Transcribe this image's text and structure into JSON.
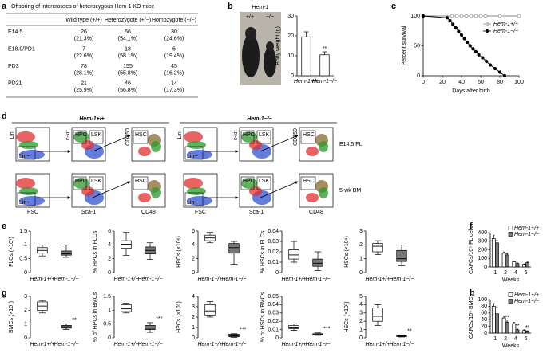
{
  "panel_a": {
    "letter": "a",
    "title": "Offspring of intercrosses of heterozygous Hem-1 KO mice",
    "columns": [
      "Wild type (+/+)",
      "Heterozygote (+/−)",
      "Homozygote (−/−)"
    ],
    "rows": [
      {
        "label": "E14.5",
        "cells": [
          [
            "26",
            "(21.3%)"
          ],
          [
            "66",
            "(54.1%)"
          ],
          [
            "30",
            "(24.6%)"
          ]
        ]
      },
      {
        "label": "E18.9/PD1",
        "cells": [
          [
            "7",
            "(22.6%)"
          ],
          [
            "18",
            "(58.1%)"
          ],
          [
            "6",
            "(19.4%)"
          ]
        ]
      },
      {
        "label": "PD3",
        "cells": [
          [
            "78",
            "(28.1%)"
          ],
          [
            "155",
            "(55.8%)"
          ],
          [
            "45",
            "(16.2%)"
          ]
        ]
      },
      {
        "label": "PD21",
        "cells": [
          [
            "21",
            "(25.9%)"
          ],
          [
            "46",
            "(56.8%)"
          ],
          [
            "14",
            "(17.3%)"
          ]
        ]
      }
    ]
  },
  "panel_b_photo": {
    "letter": "b",
    "title": "Hem-1",
    "genotypes": [
      "+/+",
      "−/−"
    ]
  },
  "panel_d": {
    "letter": "d",
    "groups": [
      "Hem-1+/+",
      "Hem-1−/−"
    ],
    "rows": [
      "E14.5 FL",
      "5-wk BM"
    ],
    "gates": [
      "Lin",
      "Lin−",
      "HPC",
      "LSK",
      "c-kit",
      "HSC",
      "CD150"
    ],
    "x_axes": [
      "FSC",
      "Sca-1",
      "CD48"
    ]
  },
  "chart_data": [
    {
      "type": "bar",
      "ylabel": "Body weight (g)",
      "categories": [
        "Hem-1+/+",
        "Hem-1−/−"
      ],
      "values": [
        19.5,
        10.5
      ],
      "errors": [
        2.5,
        1.5
      ],
      "colors": [
        "#ffffff",
        "#ffffff"
      ],
      "annotations": [
        null,
        "**"
      ],
      "ylim": [
        0,
        30
      ],
      "yticks": [
        0,
        10,
        20,
        30
      ]
    },
    {
      "type": "line",
      "panel": "c",
      "ylabel": "Percent survival",
      "xlabel": "Days after birth",
      "xlim": [
        0,
        100
      ],
      "xticks": [
        0,
        20,
        40,
        60,
        80,
        100
      ],
      "ylim": [
        0,
        100
      ],
      "yticks": [
        0,
        50,
        100
      ],
      "series": [
        {
          "name": "Hem-1+/+",
          "color": "#888888",
          "marker": "open",
          "x": [
            0,
            30,
            35,
            40,
            45,
            50,
            55,
            60,
            65,
            80,
            100
          ],
          "values": [
            100,
            100,
            100,
            100,
            100,
            100,
            100,
            100,
            100,
            100,
            100
          ]
        },
        {
          "name": "Hem-1−/−",
          "color": "#000000",
          "marker": "filled",
          "x": [
            0,
            25,
            28,
            31,
            34,
            37,
            40,
            43,
            46,
            49,
            52,
            55,
            58,
            62,
            66,
            70,
            75,
            80,
            85
          ],
          "values": [
            100,
            97,
            92,
            86,
            80,
            74,
            68,
            62,
            56,
            50,
            45,
            40,
            35,
            30,
            24,
            18,
            12,
            6,
            0
          ]
        }
      ]
    },
    {
      "type": "box",
      "panel": "e",
      "ylabel": "FLCs (×10⁷)",
      "categories": [
        "Hem-1+/+",
        "Hem-1−/−"
      ],
      "colors": [
        "#ffffff",
        "#777777"
      ],
      "boxes": [
        {
          "low": 0.6,
          "q1": 0.7,
          "median": 0.8,
          "q3": 0.9,
          "high": 1.0
        },
        {
          "low": 0.55,
          "q1": 0.63,
          "median": 0.68,
          "q3": 0.78,
          "high": 1.0
        }
      ],
      "ylim": [
        0,
        1.5
      ],
      "yticks": [
        0,
        0.5,
        1,
        1.5
      ]
    },
    {
      "type": "box",
      "ylabel": "% HPCs in FLCs",
      "categories": [
        "Hem-1+/+",
        "Hem-1−/−"
      ],
      "colors": [
        "#ffffff",
        "#777777"
      ],
      "boxes": [
        {
          "low": 2.5,
          "q1": 3.5,
          "median": 4.1,
          "q3": 4.6,
          "high": 5.8
        },
        {
          "low": 1.9,
          "q1": 2.7,
          "median": 3.2,
          "q3": 3.7,
          "high": 4.3
        }
      ],
      "ylim": [
        0,
        6
      ],
      "yticks": [
        0,
        2,
        4,
        6
      ]
    },
    {
      "type": "box",
      "ylabel": "HPCs (×10⁶)",
      "categories": [
        "Hem-1+/+",
        "Hem-1−/−"
      ],
      "colors": [
        "#ffffff",
        "#777777"
      ],
      "boxes": [
        {
          "low": 4.3,
          "q1": 4.6,
          "median": 5.0,
          "q3": 5.4,
          "high": 5.8
        },
        {
          "low": 1.2,
          "q1": 2.8,
          "median": 3.6,
          "q3": 4.2,
          "high": 4.5
        }
      ],
      "ylim": [
        0,
        6
      ],
      "yticks": [
        0,
        2,
        4,
        6
      ]
    },
    {
      "type": "box",
      "ylabel": "% HSCs in FLCs",
      "categories": [
        "Hem-1+/+",
        "Hem-1−/−"
      ],
      "colors": [
        "#ffffff",
        "#777777"
      ],
      "boxes": [
        {
          "low": 0.01,
          "q1": 0.013,
          "median": 0.017,
          "q3": 0.022,
          "high": 0.03
        },
        {
          "low": 0.002,
          "q1": 0.006,
          "median": 0.009,
          "q3": 0.013,
          "high": 0.02
        }
      ],
      "ylim": [
        0,
        0.04
      ],
      "yticks": [
        0,
        0.01,
        0.02,
        0.03,
        0.04
      ]
    },
    {
      "type": "box",
      "ylabel": "HSCs (×10⁴)",
      "categories": [
        "Hem-1+/+",
        "Hem-1−/−"
      ],
      "colors": [
        "#ffffff",
        "#777777"
      ],
      "boxes": [
        {
          "low": 1.3,
          "q1": 1.5,
          "median": 1.9,
          "q3": 2.1,
          "high": 2.3
        },
        {
          "low": 0.5,
          "q1": 0.8,
          "median": 1.0,
          "q3": 1.6,
          "high": 2.0
        }
      ],
      "ylim": [
        0,
        3
      ],
      "yticks": [
        0,
        1,
        2,
        3
      ]
    },
    {
      "type": "bar",
      "panel": "f",
      "ylabel": "CAFCs/10⁵ FL cells",
      "xlabel": "Weeks",
      "categories": [
        "1",
        "2",
        "4",
        "6"
      ],
      "series": [
        {
          "name": "Hem-1+/+",
          "color": "#ffffff",
          "values": [
            330,
            160,
            60,
            30
          ],
          "errors": [
            40,
            15,
            10,
            5
          ]
        },
        {
          "name": "Hem-1−/−",
          "color": "#777777",
          "values": [
            280,
            140,
            40,
            50
          ],
          "errors": [
            30,
            15,
            8,
            8
          ]
        }
      ],
      "ylim": [
        0,
        400
      ],
      "yticks": [
        0,
        100,
        200,
        300,
        400
      ]
    },
    {
      "type": "box",
      "panel": "g",
      "ylabel": "BMCs (×10⁷)",
      "categories": [
        "Hem-1+/+",
        "Hem-1−/−"
      ],
      "colors": [
        "#ffffff",
        "#777777"
      ],
      "annotations": [
        null,
        "**"
      ],
      "boxes": [
        {
          "low": 1.8,
          "q1": 2.0,
          "median": 2.3,
          "q3": 2.6,
          "high": 2.7
        },
        {
          "low": 0.6,
          "q1": 0.7,
          "median": 0.8,
          "q3": 0.9,
          "high": 1.0
        }
      ],
      "ylim": [
        0,
        3
      ],
      "yticks": [
        0,
        1,
        2,
        3
      ]
    },
    {
      "type": "box",
      "ylabel": "% of HPCs in BMCs",
      "categories": [
        "Hem-1+/+",
        "Hem-1−/−"
      ],
      "colors": [
        "#ffffff",
        "#777777"
      ],
      "annotations": [
        null,
        "***"
      ],
      "boxes": [
        {
          "low": 0.9,
          "q1": 0.95,
          "median": 1.05,
          "q3": 1.2,
          "high": 1.25
        },
        {
          "low": 0.2,
          "q1": 0.3,
          "median": 0.35,
          "q3": 0.45,
          "high": 0.55
        }
      ],
      "ylim": [
        0,
        1.5
      ],
      "yticks": [
        0,
        0.5,
        1,
        1.5
      ]
    },
    {
      "type": "box",
      "ylabel": "HPCs (×10⁵)",
      "categories": [
        "Hem-1+/+",
        "Hem-1−/−"
      ],
      "colors": [
        "#ffffff",
        "#777777"
      ],
      "annotations": [
        null,
        "***"
      ],
      "boxes": [
        {
          "low": 2.0,
          "q1": 2.2,
          "median": 2.6,
          "q3": 3.2,
          "high": 3.5
        },
        {
          "low": 0.05,
          "q1": 0.1,
          "median": 0.2,
          "q3": 0.35,
          "high": 0.4
        }
      ],
      "ylim": [
        0,
        4
      ],
      "yticks": [
        0,
        1,
        2,
        3,
        4
      ]
    },
    {
      "type": "box",
      "ylabel": "% of HSCs in BMCs",
      "categories": [
        "Hem-1+/+",
        "Hem-1−/−"
      ],
      "colors": [
        "#ffffff",
        "#777777"
      ],
      "annotations": [
        null,
        "***"
      ],
      "boxes": [
        {
          "low": 0.009,
          "q1": 0.011,
          "median": 0.013,
          "q3": 0.015,
          "high": 0.017
        },
        {
          "low": 0.003,
          "q1": 0.0035,
          "median": 0.004,
          "q3": 0.005,
          "high": 0.006
        }
      ],
      "ylim": [
        0,
        0.05
      ],
      "yticks": [
        0,
        0.01,
        0.02,
        0.03,
        0.04,
        0.05
      ]
    },
    {
      "type": "box",
      "ylabel": "HSCs (×10³)",
      "categories": [
        "Hem-1+/+",
        "Hem-1−/−"
      ],
      "colors": [
        "#ffffff",
        "#777777"
      ],
      "annotations": [
        null,
        "**"
      ],
      "boxes": [
        {
          "low": 1.5,
          "q1": 2.0,
          "median": 2.6,
          "q3": 3.6,
          "high": 4.0
        },
        {
          "low": 0.1,
          "q1": 0.15,
          "median": 0.2,
          "q3": 0.25,
          "high": 0.3
        }
      ],
      "ylim": [
        0,
        5
      ],
      "yticks": [
        0,
        1,
        2,
        3,
        4,
        5
      ]
    },
    {
      "type": "bar",
      "panel": "h",
      "ylabel": "CAFCs/10⁵ BMCs",
      "xlabel": "Weeks",
      "categories": [
        "1",
        "2",
        "4",
        "6"
      ],
      "series": [
        {
          "name": "Hem-1+/+",
          "color": "#ffffff",
          "values": [
            80,
            45,
            28,
            8
          ],
          "errors": [
            8,
            5,
            4,
            2
          ]
        },
        {
          "name": "Hem-1−/−",
          "color": "#777777",
          "values": [
            58,
            32,
            10,
            6
          ],
          "errors": [
            6,
            4,
            2,
            1
          ],
          "annotations": [
            "*",
            "**",
            "**",
            "**"
          ]
        }
      ],
      "ylim": [
        0,
        100
      ],
      "yticks": [
        0,
        20,
        40,
        60,
        80,
        100
      ]
    }
  ]
}
